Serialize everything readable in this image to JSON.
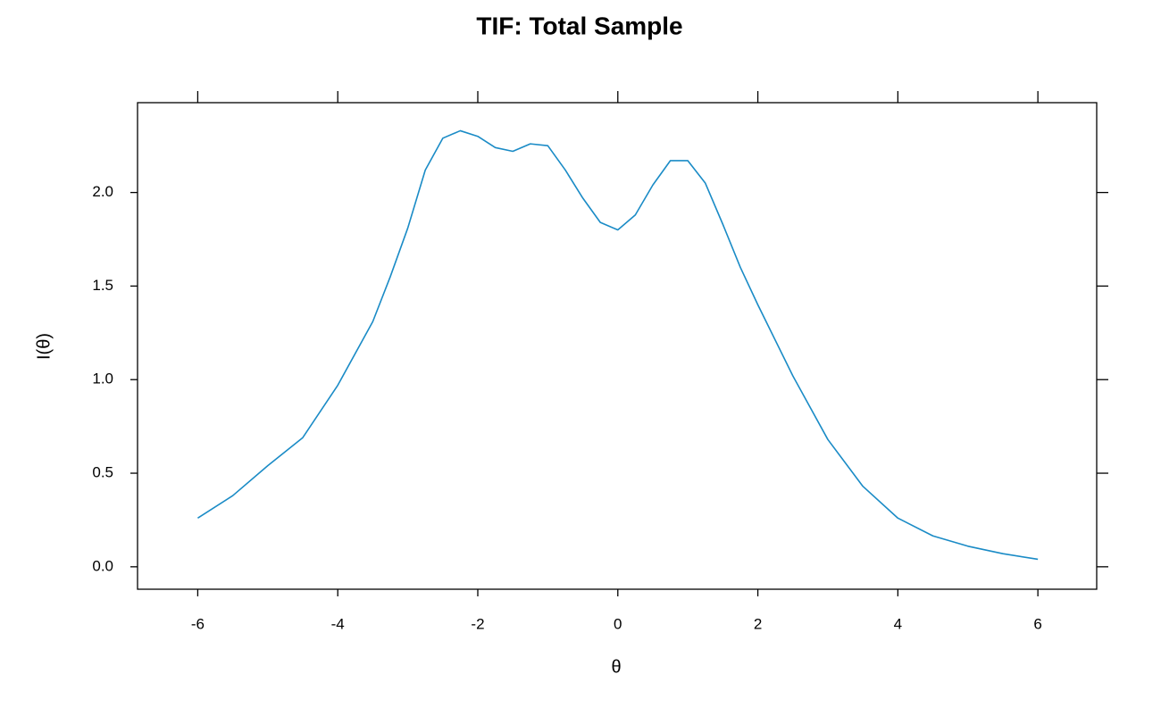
{
  "chart_data": {
    "type": "line",
    "title": "TIF: Total Sample",
    "x_label": "θ",
    "y_label": "I(θ)",
    "x": [
      -6,
      -5.5,
      -5,
      -4.5,
      -4,
      -3.5,
      -3.25,
      -3,
      -2.75,
      -2.5,
      -2.25,
      -2,
      -1.75,
      -1.5,
      -1.25,
      -1,
      -0.75,
      -0.5,
      -0.25,
      0,
      0.25,
      0.5,
      0.75,
      1,
      1.25,
      1.5,
      1.75,
      2,
      2.5,
      3,
      3.5,
      4,
      4.5,
      5,
      5.5,
      6
    ],
    "series": [
      {
        "name": "TIF",
        "color": "#1a8bc6",
        "values": [
          0.26,
          0.38,
          0.54,
          0.69,
          0.97,
          1.31,
          1.55,
          1.81,
          2.12,
          2.29,
          2.33,
          2.3,
          2.24,
          2.22,
          2.26,
          2.25,
          2.12,
          1.97,
          1.84,
          1.8,
          1.88,
          2.04,
          2.17,
          2.17,
          2.05,
          1.83,
          1.6,
          1.4,
          1.02,
          0.68,
          0.43,
          0.26,
          0.165,
          0.11,
          0.07,
          0.04
        ]
      }
    ],
    "xlim": [
      -6.86,
      6.84
    ],
    "xticks": [
      -6,
      -4,
      -2,
      0,
      2,
      4,
      6
    ],
    "ylim": [
      -0.12,
      2.48
    ],
    "yticks": [
      {
        "value": 0,
        "label": "0.0"
      },
      0.5,
      {
        "value": 1,
        "label": "1.0"
      },
      1.5,
      {
        "value": 2,
        "label": "2.0"
      }
    ]
  }
}
